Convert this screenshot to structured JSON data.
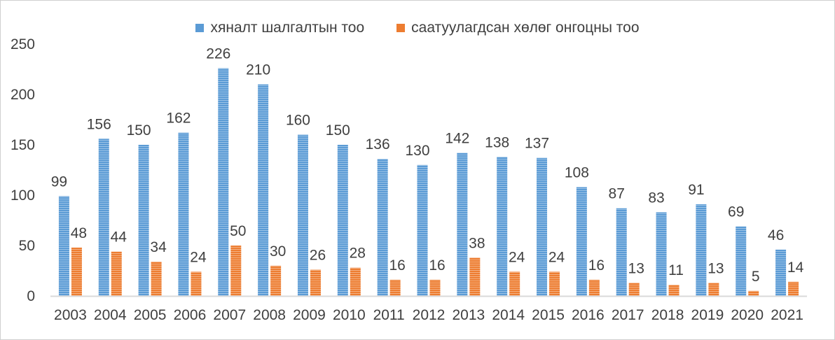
{
  "chart_data": {
    "type": "bar",
    "categories": [
      "2003",
      "2004",
      "2005",
      "2006",
      "2007",
      "2008",
      "2009",
      "2010",
      "2011",
      "2012",
      "2013",
      "2014",
      "2015",
      "2016",
      "2017",
      "2018",
      "2019",
      "2020",
      "2021"
    ],
    "series": [
      {
        "name": "хяналт шалгалтын тоо",
        "color": "#5b9bd5",
        "values": [
          99,
          156,
          150,
          162,
          226,
          210,
          160,
          150,
          136,
          130,
          142,
          138,
          137,
          108,
          87,
          83,
          91,
          69,
          46
        ]
      },
      {
        "name": "саатуулагдсан хөлөг онгоцны тоо",
        "color": "#ed7d31",
        "values": [
          48,
          44,
          34,
          24,
          50,
          30,
          26,
          28,
          16,
          16,
          38,
          24,
          24,
          16,
          13,
          11,
          13,
          5,
          14
        ]
      }
    ],
    "yticks": [
      "0",
      "50",
      "100",
      "150",
      "200",
      "250"
    ],
    "ylim": [
      0,
      250
    ],
    "legend_position": "top-center",
    "grid": false
  }
}
